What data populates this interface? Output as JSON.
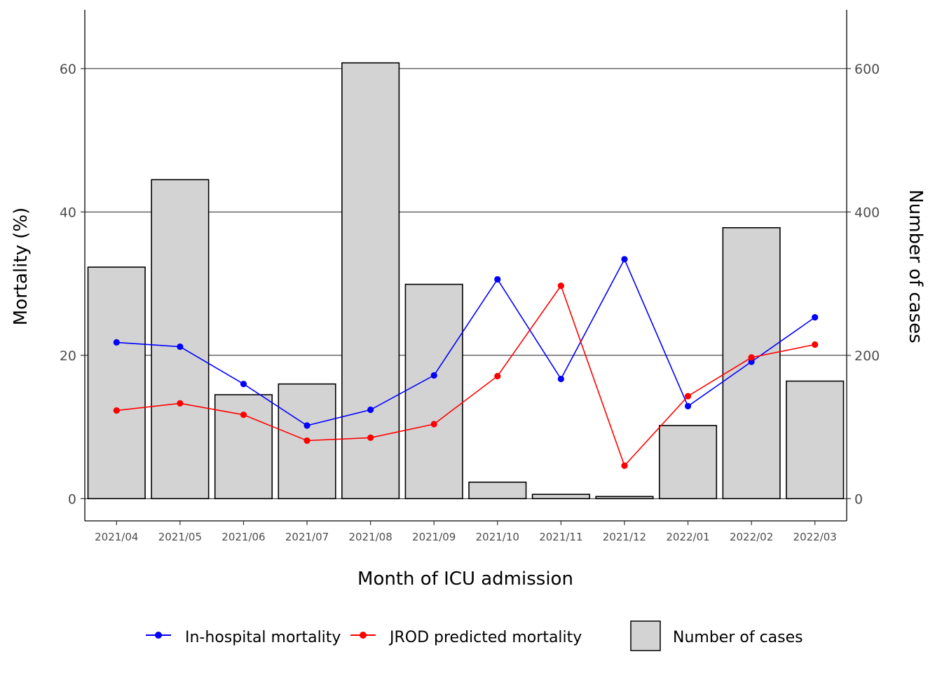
{
  "chart_data": {
    "type": "bar+line",
    "categories": [
      "2021/04",
      "2021/05",
      "2021/06",
      "2021/07",
      "2021/08",
      "2021/09",
      "2021/10",
      "2021/11",
      "2021/12",
      "2022/01",
      "2022/02",
      "2022/03"
    ],
    "bars": {
      "name": "Number of cases",
      "axis": "right",
      "values": [
        323,
        445,
        145,
        160,
        608,
        299,
        23,
        6,
        3,
        102,
        378,
        164
      ],
      "fill": "#d3d3d3",
      "stroke": "#000000"
    },
    "series": [
      {
        "name": "In-hospital mortality",
        "axis": "left",
        "color": "#0000ff",
        "values": [
          21.8,
          21.2,
          16.0,
          10.2,
          12.4,
          17.2,
          30.6,
          16.7,
          33.4,
          12.9,
          19.1,
          25.3
        ]
      },
      {
        "name": "JROD predicted mortality",
        "axis": "left",
        "color": "#ff0000",
        "values": [
          12.3,
          13.3,
          11.7,
          8.1,
          8.5,
          10.4,
          17.1,
          29.7,
          4.6,
          14.3,
          19.7,
          21.5
        ]
      }
    ],
    "xlabel": "Month of ICU admission",
    "ylabel_left": "Mortality (%)",
    "ylabel_right": "Number of cases",
    "ylim_left": [
      -3.1,
      68.2
    ],
    "ylim_right": [
      -31,
      682
    ],
    "yticks_left": [
      "0",
      "20",
      "40",
      "60"
    ],
    "yticks_right": [
      "0",
      "200",
      "400",
      "600"
    ],
    "grid": "horizontal major",
    "legend_position": "bottom"
  }
}
